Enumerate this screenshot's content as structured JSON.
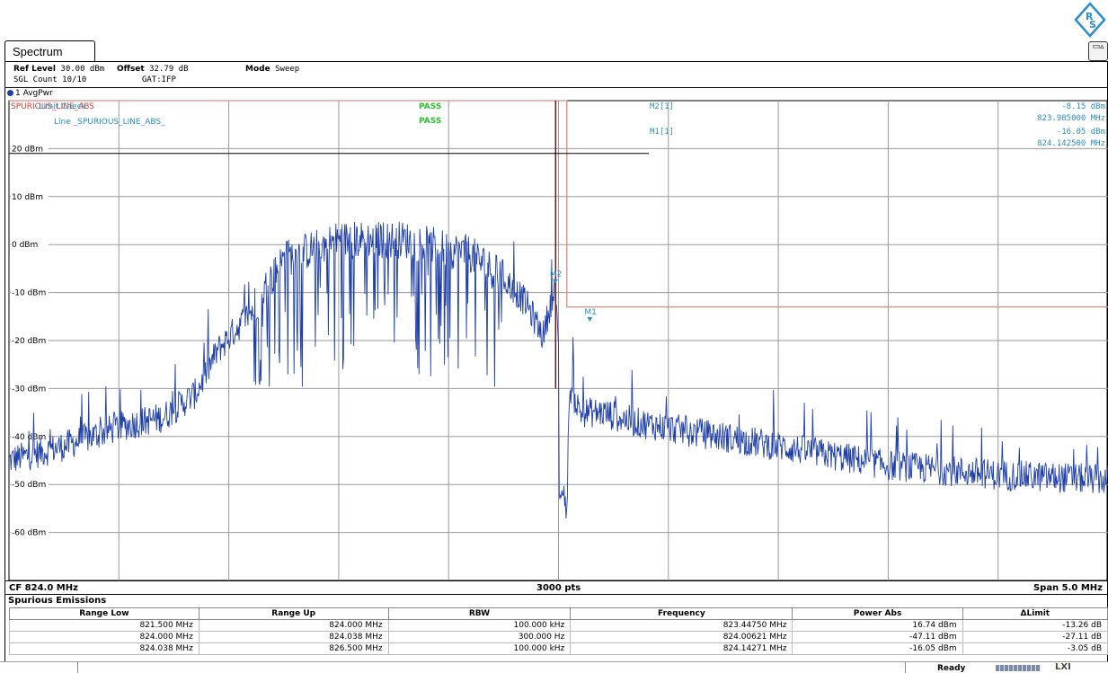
{
  "window": {
    "tab_label": "Spectrum",
    "right_button_glyph": "▭▵"
  },
  "header": {
    "ref_level_label": "Ref Level",
    "ref_level_value": "30.00 dBm",
    "offset_label": "Offset",
    "offset_value": "32.79 dB",
    "mode_label": "Mode",
    "mode_value": "Sweep",
    "sgl_count": "SGL Count 10/10",
    "gat": "GAT:IFP"
  },
  "trace": {
    "label": "1 AvgPwr",
    "color": "#1f3fa8"
  },
  "limit_lines": {
    "line1_text": "SPURIOUS_LINE_ABS",
    "line1_overlay": "Limit Check",
    "line2_text": "Line _SPURIOUS_LINE_ABS_",
    "pass1": "PASS",
    "pass2": "PASS",
    "limit_color": "#e08a80",
    "pass_color": "#2ec02e"
  },
  "markers": {
    "m2_label": "M2[1]",
    "m2_value": "-8.15 dBm",
    "m2_freq": "823.985000 MHz",
    "m1_label": "M1[1]",
    "m1_value": "-16.05 dBm",
    "m1_freq": "824.142500 MHz",
    "m1_tag": "M1",
    "m2_tag": "M2",
    "marker_color": "#2b8fc4"
  },
  "chart_data": {
    "type": "line",
    "title": "",
    "xlabel": "",
    "ylabel": "",
    "x_unit": "MHz",
    "xlim": [
      821.5,
      826.5
    ],
    "ylim": [
      -70,
      30
    ],
    "y_ticks": [
      20,
      10,
      0,
      -10,
      -20,
      -30,
      -40,
      -50,
      -60
    ],
    "y_tick_labels": [
      "20 dBm",
      "10 dBm",
      "0 dBm",
      "-10 dBm",
      "-20 dBm",
      "-30 dBm",
      "-40 dBm",
      "-50 dBm",
      "-60 dBm"
    ],
    "grid": true,
    "series": [
      {
        "x": [
          821.5,
          821.75,
          822.0,
          822.2,
          822.35,
          822.45,
          822.6,
          822.75,
          823.0,
          823.3,
          823.5,
          823.6,
          823.75,
          823.85,
          823.93,
          823.985,
          824.02,
          824.038,
          824.05,
          824.1,
          824.2,
          824.35,
          824.6,
          825.0,
          825.5,
          826.0,
          826.5
        ],
        "y": [
          -45,
          -42,
          -38,
          -36,
          -31,
          -22,
          -14,
          -3,
          1,
          1,
          -1,
          -2,
          -7,
          -12,
          -19,
          -8.15,
          -45,
          -55,
          -30,
          -35,
          -35,
          -37,
          -39,
          -42,
          -46,
          -48,
          -49
        ]
      }
    ],
    "limit_line": {
      "x": [
        821.5,
        824.038,
        824.038,
        826.5
      ],
      "y": [
        30,
        30,
        -13,
        -13
      ]
    },
    "marker_points": [
      {
        "name": "M2",
        "x": 823.985,
        "y": -8.15
      },
      {
        "name": "M1",
        "x": 824.1425,
        "y": -16.05
      }
    ],
    "center_label": "CF 824.0 MHz",
    "points_label": "3000 pts",
    "span_label": "Span 5.0 MHz"
  },
  "spurious": {
    "title": "Spurious Emissions",
    "columns": [
      "Range Low",
      "Range Up",
      "RBW",
      "Frequency",
      "Power Abs",
      "ΔLimit"
    ],
    "rows": [
      [
        "821.500 MHz",
        "824.000 MHz",
        "100.000 kHz",
        "823.44750 MHz",
        "16.74 dBm",
        "-13.26 dB"
      ],
      [
        "824.000 MHz",
        "824.038 MHz",
        "300.000 Hz",
        "824.00621 MHz",
        "-47.11 dBm",
        "-27.11 dB"
      ],
      [
        "824.038 MHz",
        "826.500 MHz",
        "100.000 kHz",
        "824.14271 MHz",
        "-16.05 dBm",
        "-3.05 dB"
      ]
    ]
  },
  "status": {
    "ready": "Ready",
    "lxi": "LXI"
  }
}
